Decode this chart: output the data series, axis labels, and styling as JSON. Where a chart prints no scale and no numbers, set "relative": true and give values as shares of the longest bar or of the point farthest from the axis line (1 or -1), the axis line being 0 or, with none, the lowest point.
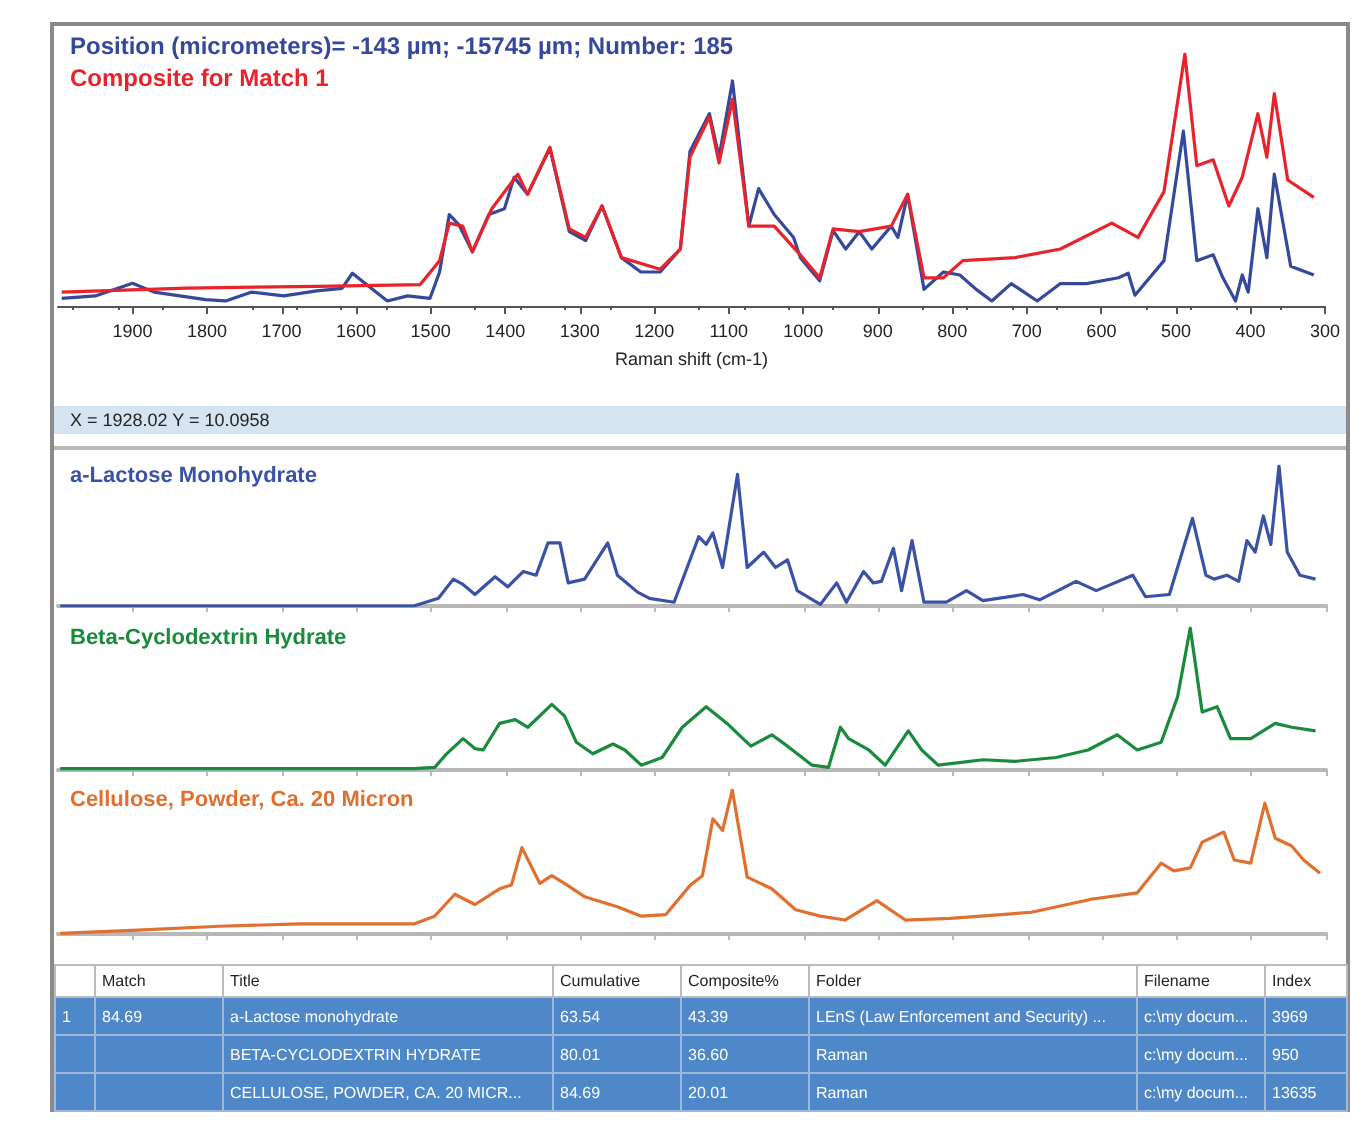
{
  "chart_data": [
    {
      "type": "line",
      "relative": true,
      "xlabel": "Raman shift (cm-1)",
      "xlim": [
        2000,
        300
      ],
      "xticks": [
        1900,
        1800,
        1700,
        1600,
        1500,
        1400,
        1300,
        1200,
        1100,
        1000,
        900,
        800,
        700,
        600,
        500,
        400,
        300
      ],
      "grid": false,
      "legend": "top left",
      "annotations": [
        "X = 1928.02    Y = 10.0958"
      ],
      "series": [
        {
          "name": "Position (micrometers)= -143 µm; -15745 µm; Number: 185",
          "color": "#34489c",
          "x": [
            1995,
            1950,
            1900,
            1871,
            1802,
            1775,
            1741,
            1697,
            1653,
            1619,
            1605,
            1584,
            1558,
            1531,
            1501,
            1488,
            1475,
            1462,
            1444,
            1422,
            1401,
            1388,
            1370,
            1340,
            1314,
            1292,
            1270,
            1244,
            1218,
            1192,
            1165,
            1152,
            1126,
            1113,
            1095,
            1073,
            1060,
            1039,
            1013,
            1004,
            978,
            960,
            943,
            925,
            908,
            882,
            873,
            860,
            838,
            812,
            790,
            768,
            747,
            721,
            686,
            655,
            620,
            577,
            564,
            555,
            516,
            490,
            472,
            450,
            437,
            420,
            411,
            403,
            390,
            378,
            368,
            346,
            315
          ],
          "values": [
            0.03,
            0.04,
            0.09,
            0.055,
            0.025,
            0.02,
            0.055,
            0.04,
            0.06,
            0.07,
            0.13,
            0.08,
            0.02,
            0.04,
            0.03,
            0.135,
            0.363,
            0.322,
            0.215,
            0.363,
            0.386,
            0.511,
            0.443,
            0.626,
            0.295,
            0.26,
            0.397,
            0.192,
            0.135,
            0.135,
            0.226,
            0.614,
            0.763,
            0.591,
            0.893,
            0.317,
            0.466,
            0.363,
            0.272,
            0.192,
            0.1,
            0.299,
            0.226,
            0.295,
            0.226,
            0.317,
            0.272,
            0.443,
            0.066,
            0.135,
            0.123,
            0.066,
            0.02,
            0.089,
            0.02,
            0.089,
            0.089,
            0.112,
            0.13,
            0.043,
            0.18,
            0.694,
            0.18,
            0.203,
            0.112,
            0.02,
            0.123,
            0.055,
            0.386,
            0.192,
            0.523,
            0.158,
            0.123
          ]
        },
        {
          "name": "Composite for Match 1",
          "color": "#e8232b",
          "x": [
            1995,
            1828,
            1653,
            1514,
            1488,
            1475,
            1457,
            1444,
            1418,
            1383,
            1370,
            1340,
            1314,
            1292,
            1270,
            1244,
            1192,
            1165,
            1152,
            1126,
            1113,
            1095,
            1073,
            1039,
            1004,
            978,
            960,
            925,
            882,
            860,
            838,
            812,
            786,
            716,
            655,
            586,
            551,
            516,
            488,
            472,
            450,
            429,
            411,
            390,
            378,
            368,
            350,
            315
          ],
          "values": [
            0.055,
            0.071,
            0.078,
            0.085,
            0.18,
            0.329,
            0.317,
            0.215,
            0.386,
            0.523,
            0.443,
            0.63,
            0.306,
            0.272,
            0.397,
            0.192,
            0.146,
            0.226,
            0.591,
            0.751,
            0.568,
            0.82,
            0.317,
            0.317,
            0.203,
            0.112,
            0.306,
            0.295,
            0.317,
            0.443,
            0.112,
            0.112,
            0.18,
            0.192,
            0.226,
            0.329,
            0.272,
            0.454,
            1,
            0.557,
            0.58,
            0.397,
            0.511,
            0.763,
            0.591,
            0.843,
            0.5,
            0.431
          ]
        }
      ]
    },
    {
      "type": "line",
      "relative": true,
      "xlim": [
        2000,
        300
      ],
      "xticks": [
        1900,
        1800,
        1700,
        1600,
        1500,
        1400,
        1300,
        1200,
        1100,
        1000,
        900,
        800,
        700,
        600,
        500,
        400,
        300
      ],
      "tick_labels": false,
      "grid": false,
      "legend": "top left",
      "series": [
        {
          "name": "a-Lactose Monohydrate",
          "color": "#3a52a6",
          "x": [
            1997,
            1784,
            1523,
            1490,
            1470,
            1457,
            1441,
            1414,
            1397,
            1376,
            1359,
            1343,
            1327,
            1316,
            1294,
            1263,
            1250,
            1223,
            1207,
            1174,
            1141,
            1131,
            1122,
            1109,
            1089,
            1076,
            1054,
            1038,
            1022,
            1009,
            978,
            956,
            943,
            920,
            907,
            896,
            880,
            869,
            855,
            839,
            809,
            782,
            760,
            706,
            684,
            635,
            608,
            559,
            542,
            510,
            479,
            461,
            450,
            433,
            417,
            406,
            395,
            384,
            374,
            363,
            352,
            335,
            314
          ],
          "values": [
            0,
            0,
            0,
            0.055,
            0.192,
            0.154,
            0.082,
            0.209,
            0.137,
            0.247,
            0.22,
            0.451,
            0.451,
            0.165,
            0.192,
            0.451,
            0.22,
            0.099,
            0.055,
            0.027,
            0.495,
            0.44,
            0.522,
            0.275,
            0.94,
            0.275,
            0.385,
            0.275,
            0.33,
            0.11,
            0.011,
            0.165,
            0.027,
            0.247,
            0.165,
            0.176,
            0.412,
            0.11,
            0.467,
            0.027,
            0.027,
            0.11,
            0.038,
            0.082,
            0.044,
            0.176,
            0.11,
            0.22,
            0.066,
            0.082,
            0.626,
            0.22,
            0.192,
            0.22,
            0.176,
            0.467,
            0.385,
            0.643,
            0.44,
            1,
            0.385,
            0.22,
            0.192
          ]
        }
      ]
    },
    {
      "type": "line",
      "relative": true,
      "xlim": [
        2000,
        300
      ],
      "xticks": [
        1900,
        1800,
        1700,
        1600,
        1500,
        1400,
        1300,
        1200,
        1100,
        1000,
        900,
        800,
        700,
        600,
        500,
        400,
        300
      ],
      "tick_labels": false,
      "grid": false,
      "legend": "top left",
      "series": [
        {
          "name": "Beta-Cyclodextrin Hydrate",
          "color": "#1a8a3c",
          "x": [
            1997,
            1523,
            1495,
            1479,
            1457,
            1441,
            1430,
            1408,
            1387,
            1370,
            1338,
            1321,
            1305,
            1283,
            1256,
            1240,
            1218,
            1190,
            1163,
            1131,
            1103,
            1087,
            1071,
            1043,
            1022,
            989,
            967,
            951,
            940,
            913,
            891,
            860,
            842,
            820,
            760,
            717,
            662,
            619,
            580,
            553,
            521,
            499,
            482,
            466,
            446,
            428,
            401,
            368,
            346,
            314
          ],
          "values": [
            0.01,
            0.01,
            0.018,
            0.114,
            0.221,
            0.151,
            0.141,
            0.328,
            0.355,
            0.301,
            0.462,
            0.381,
            0.195,
            0.114,
            0.183,
            0.141,
            0.034,
            0.088,
            0.301,
            0.446,
            0.328,
            0.248,
            0.168,
            0.248,
            0.168,
            0.034,
            0.018,
            0.301,
            0.221,
            0.141,
            0.034,
            0.275,
            0.141,
            0.034,
            0.072,
            0.061,
            0.088,
            0.141,
            0.248,
            0.141,
            0.195,
            0.515,
            1,
            0.408,
            0.446,
            0.221,
            0.221,
            0.328,
            0.301,
            0.275
          ]
        }
      ]
    },
    {
      "type": "line",
      "relative": true,
      "xlim": [
        2000,
        300
      ],
      "xticks": [
        1900,
        1800,
        1700,
        1600,
        1500,
        1400,
        1300,
        1200,
        1100,
        1000,
        900,
        800,
        700,
        600,
        500,
        400,
        300
      ],
      "tick_labels": false,
      "grid": false,
      "legend": "top left",
      "series": [
        {
          "name": "Cellulose, Powder, Ca. 20 Micron",
          "color": "#e07030",
          "x": [
            1997,
            1893,
            1784,
            1675,
            1523,
            1495,
            1468,
            1441,
            1408,
            1392,
            1378,
            1354,
            1338,
            1321,
            1294,
            1250,
            1218,
            1185,
            1152,
            1136,
            1122,
            1109,
            1096,
            1076,
            1043,
            1011,
            978,
            945,
            902,
            864,
            804,
            695,
            613,
            553,
            521,
            504,
            482,
            466,
            437,
            423,
            401,
            382,
            368,
            346,
            330,
            308
          ],
          "values": [
            0.005,
            0.027,
            0.054,
            0.07,
            0.07,
            0.124,
            0.276,
            0.205,
            0.314,
            0.341,
            0.6,
            0.351,
            0.405,
            0.351,
            0.259,
            0.189,
            0.124,
            0.135,
            0.341,
            0.405,
            0.8,
            0.719,
            1,
            0.395,
            0.314,
            0.168,
            0.124,
            0.097,
            0.232,
            0.097,
            0.108,
            0.151,
            0.243,
            0.286,
            0.492,
            0.438,
            0.459,
            0.638,
            0.708,
            0.514,
            0.492,
            0.908,
            0.665,
            0.611,
            0.514,
            0.422
          ]
        }
      ]
    },
    {
      "type": "other",
      "categories": [
        null,
        "Match",
        "Title",
        "Cumulative",
        "Composite%",
        "Folder",
        "Filename",
        "Index"
      ],
      "annotations": [
        "1",
        "84.69",
        "a-Lactose monohydrate",
        "63.54",
        "43.39",
        "LEnS (Law Enforcement and Security) ...",
        "c:\\my docum...",
        "3969",
        null,
        null,
        "BETA-CYCLODEXTRIN HYDRATE",
        "80.01",
        "36.60",
        "Raman",
        "c:\\my docum...",
        "950",
        null,
        null,
        "CELLULOSE, POWDER, CA. 20 MICR...",
        "84.69",
        "20.01",
        "Raman",
        "c:\\my docum...",
        "13635"
      ]
    }
  ]
}
